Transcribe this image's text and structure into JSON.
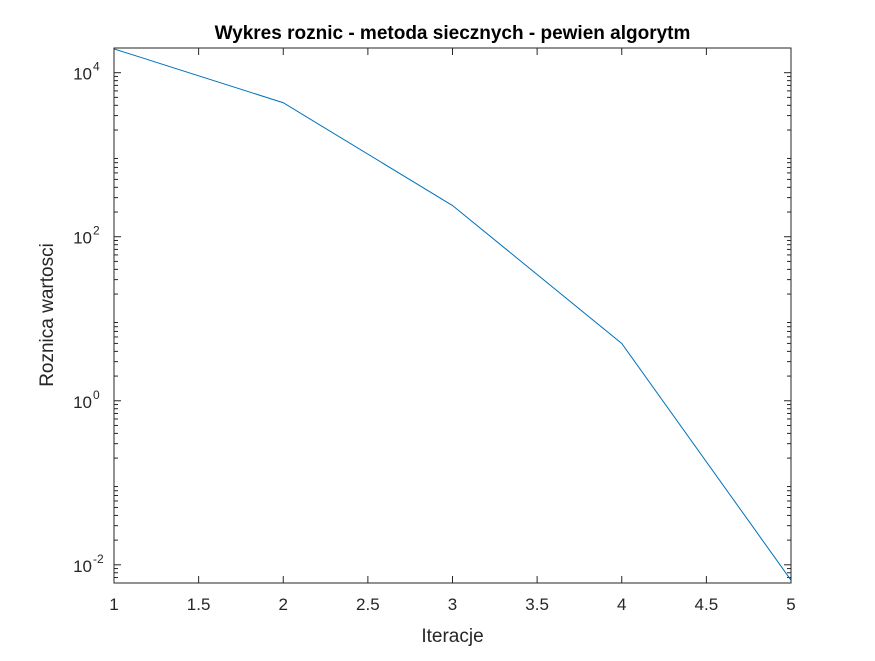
{
  "chart_data": {
    "type": "line",
    "title": "Wykres roznic - metoda siecznych - pewien algorytm",
    "xlabel": "Iteracje",
    "ylabel": "Roznica wartosci",
    "xlim": [
      1,
      5
    ],
    "ylim": [
      0.006,
      20000
    ],
    "yscale": "log",
    "grid": false,
    "legend": "none",
    "x_ticks": [
      1,
      1.5,
      2,
      2.5,
      3,
      3.5,
      4,
      4.5,
      5
    ],
    "x_tick_labels": [
      "1",
      "1.5",
      "2",
      "2.5",
      "3",
      "3.5",
      "4",
      "4.5",
      "5"
    ],
    "y_ticks": [
      {
        "value": 0.01,
        "base": "10",
        "exp": "-2"
      },
      {
        "value": 1,
        "base": "10",
        "exp": "0"
      },
      {
        "value": 100,
        "base": "10",
        "exp": "2"
      },
      {
        "value": 10000,
        "base": "10",
        "exp": "4"
      }
    ],
    "series": [
      {
        "x": [
          1,
          2,
          3,
          4,
          5
        ],
        "y": [
          19500,
          4300,
          240,
          5,
          0.0065
        ],
        "color": "#0072bd"
      }
    ]
  }
}
